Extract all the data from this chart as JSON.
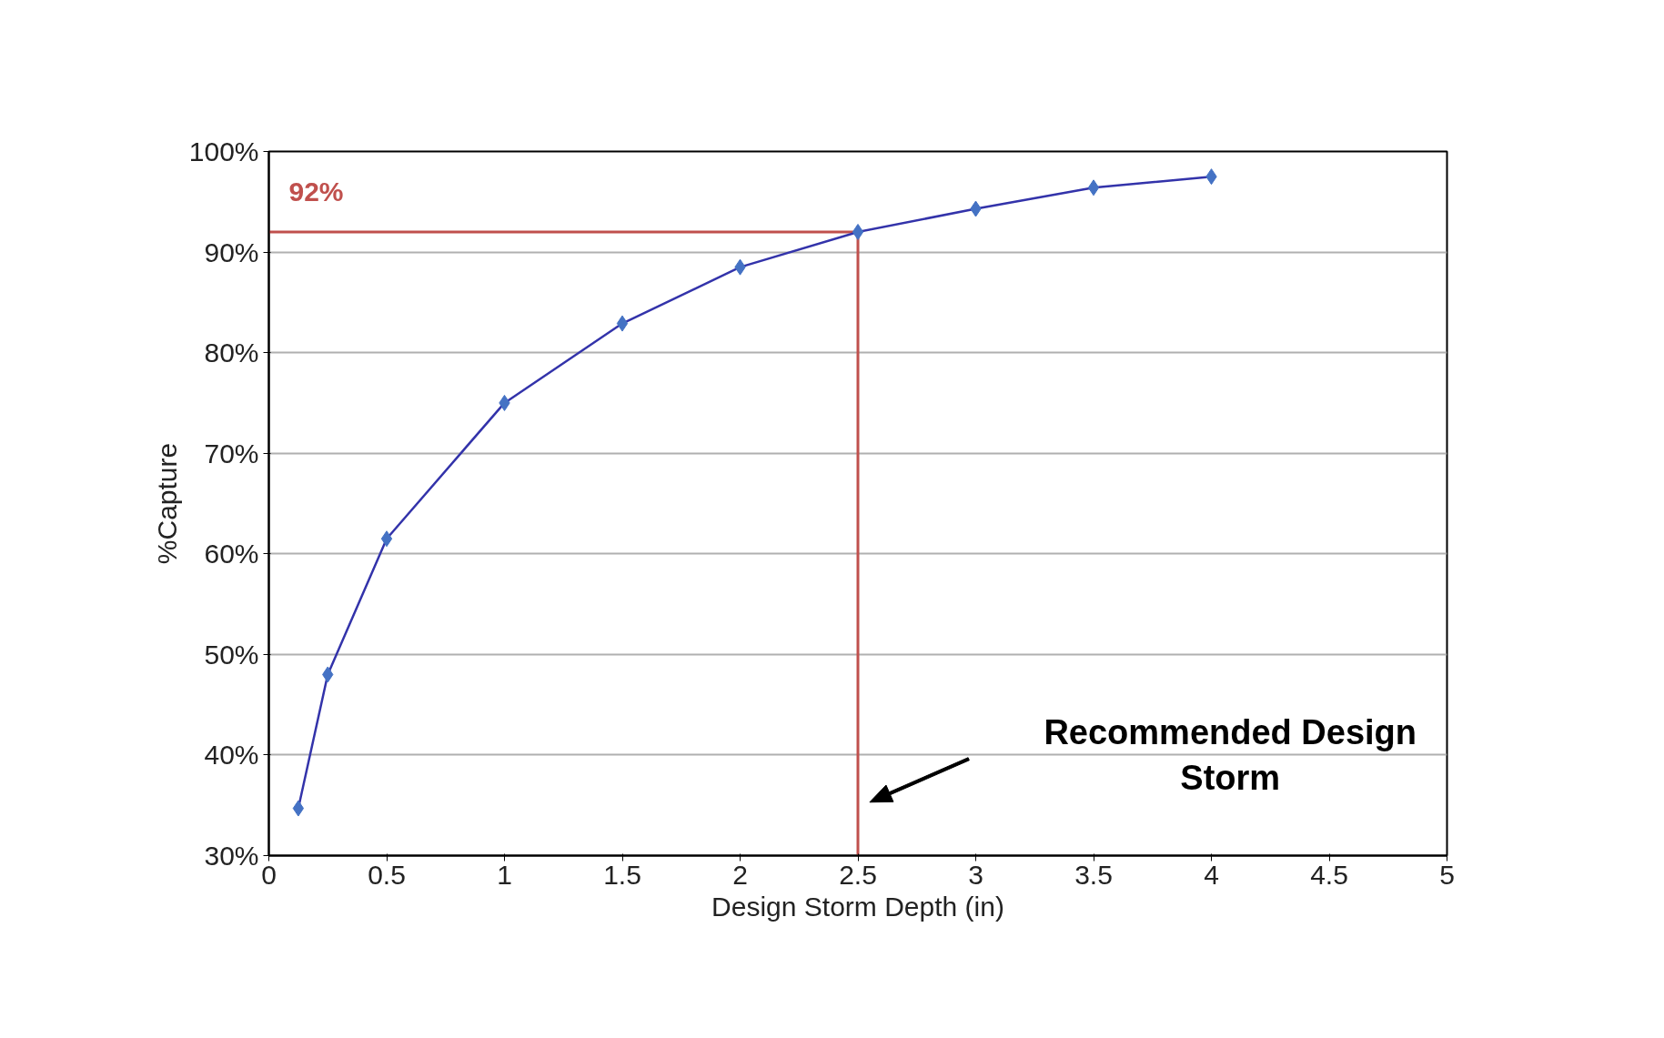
{
  "chart_data": {
    "type": "line",
    "xlabel": "Design Storm Depth (in)",
    "ylabel": "%Capture",
    "x": [
      0.125,
      0.25,
      0.5,
      1,
      1.5,
      2,
      2.5,
      3,
      3.5,
      4
    ],
    "series": [
      {
        "color": "#4472c4",
        "values": [
          34.7,
          48,
          61.5,
          75,
          82.9,
          88.5,
          92,
          94.3,
          96.4,
          97.5
        ]
      }
    ],
    "xlim": [
      0,
      5
    ],
    "xticks": [
      0,
      0.5,
      1,
      1.5,
      2,
      2.5,
      3,
      3.5,
      4,
      4.5,
      5
    ],
    "ylim": [
      30,
      100
    ],
    "yticks": [
      {
        "value": 30,
        "label": "30%"
      },
      {
        "value": 40,
        "label": "40%"
      },
      {
        "value": 50,
        "label": "50%"
      },
      {
        "value": 60,
        "label": "60%"
      },
      {
        "value": 70,
        "label": "70%"
      },
      {
        "value": 80,
        "label": "80%"
      },
      {
        "value": 90,
        "label": "90%"
      },
      {
        "value": 100,
        "label": "100%"
      }
    ],
    "grid": "y",
    "marker": "diamond",
    "line_style": "solid",
    "ref_lines": [
      {
        "axis": "y",
        "value": 92,
        "label": "92%",
        "color": "#c0504d"
      },
      {
        "axis": "x",
        "value": 2.5,
        "color": "#c0504d"
      }
    ],
    "annotations": [
      "Recommended Design Storm"
    ]
  }
}
